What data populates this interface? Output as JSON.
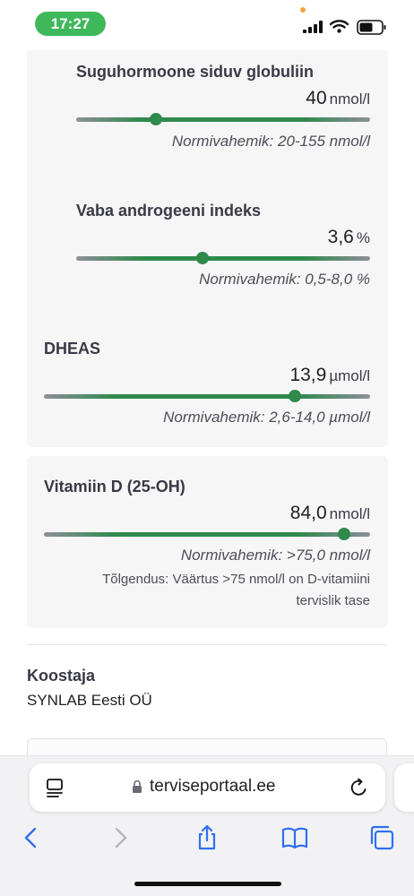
{
  "status_bar": {
    "time": "17:27"
  },
  "results": [
    {
      "name": "Suguhormoone siduv globuliin",
      "value": "40",
      "unit": "nmol/l",
      "norm": "Normivahemik: 20-155 nmol/l",
      "level": 0.27
    },
    {
      "name": "Vaba androgeeni indeks",
      "value": "3,6",
      "unit": "%",
      "norm": "Normivahemik: 0,5-8,0 %",
      "level": 0.43
    },
    {
      "name": "DHEAS",
      "value": "13,9",
      "unit": "µmol/l",
      "norm": "Normivahemik: 2,6-14,0 µmol/l",
      "level": 0.77
    },
    {
      "name": "Vitamiin D (25-OH)",
      "value": "84,0",
      "unit": "nmol/l",
      "norm": "Normivahemik: >75,0 nmol/l",
      "level": 0.92,
      "interpretation": "Tõlgendus: Väärtus >75 nmol/l on D-vitamiini tervislik tase"
    }
  ],
  "author": {
    "label": "Koostaja",
    "value": "SYNLAB Eesti OÜ"
  },
  "browser": {
    "url": "terviseportaal.ee"
  },
  "colors": {
    "accent": "#2f8a4c",
    "track": "#8e8e9a",
    "time_pill": "#3fb85b"
  }
}
